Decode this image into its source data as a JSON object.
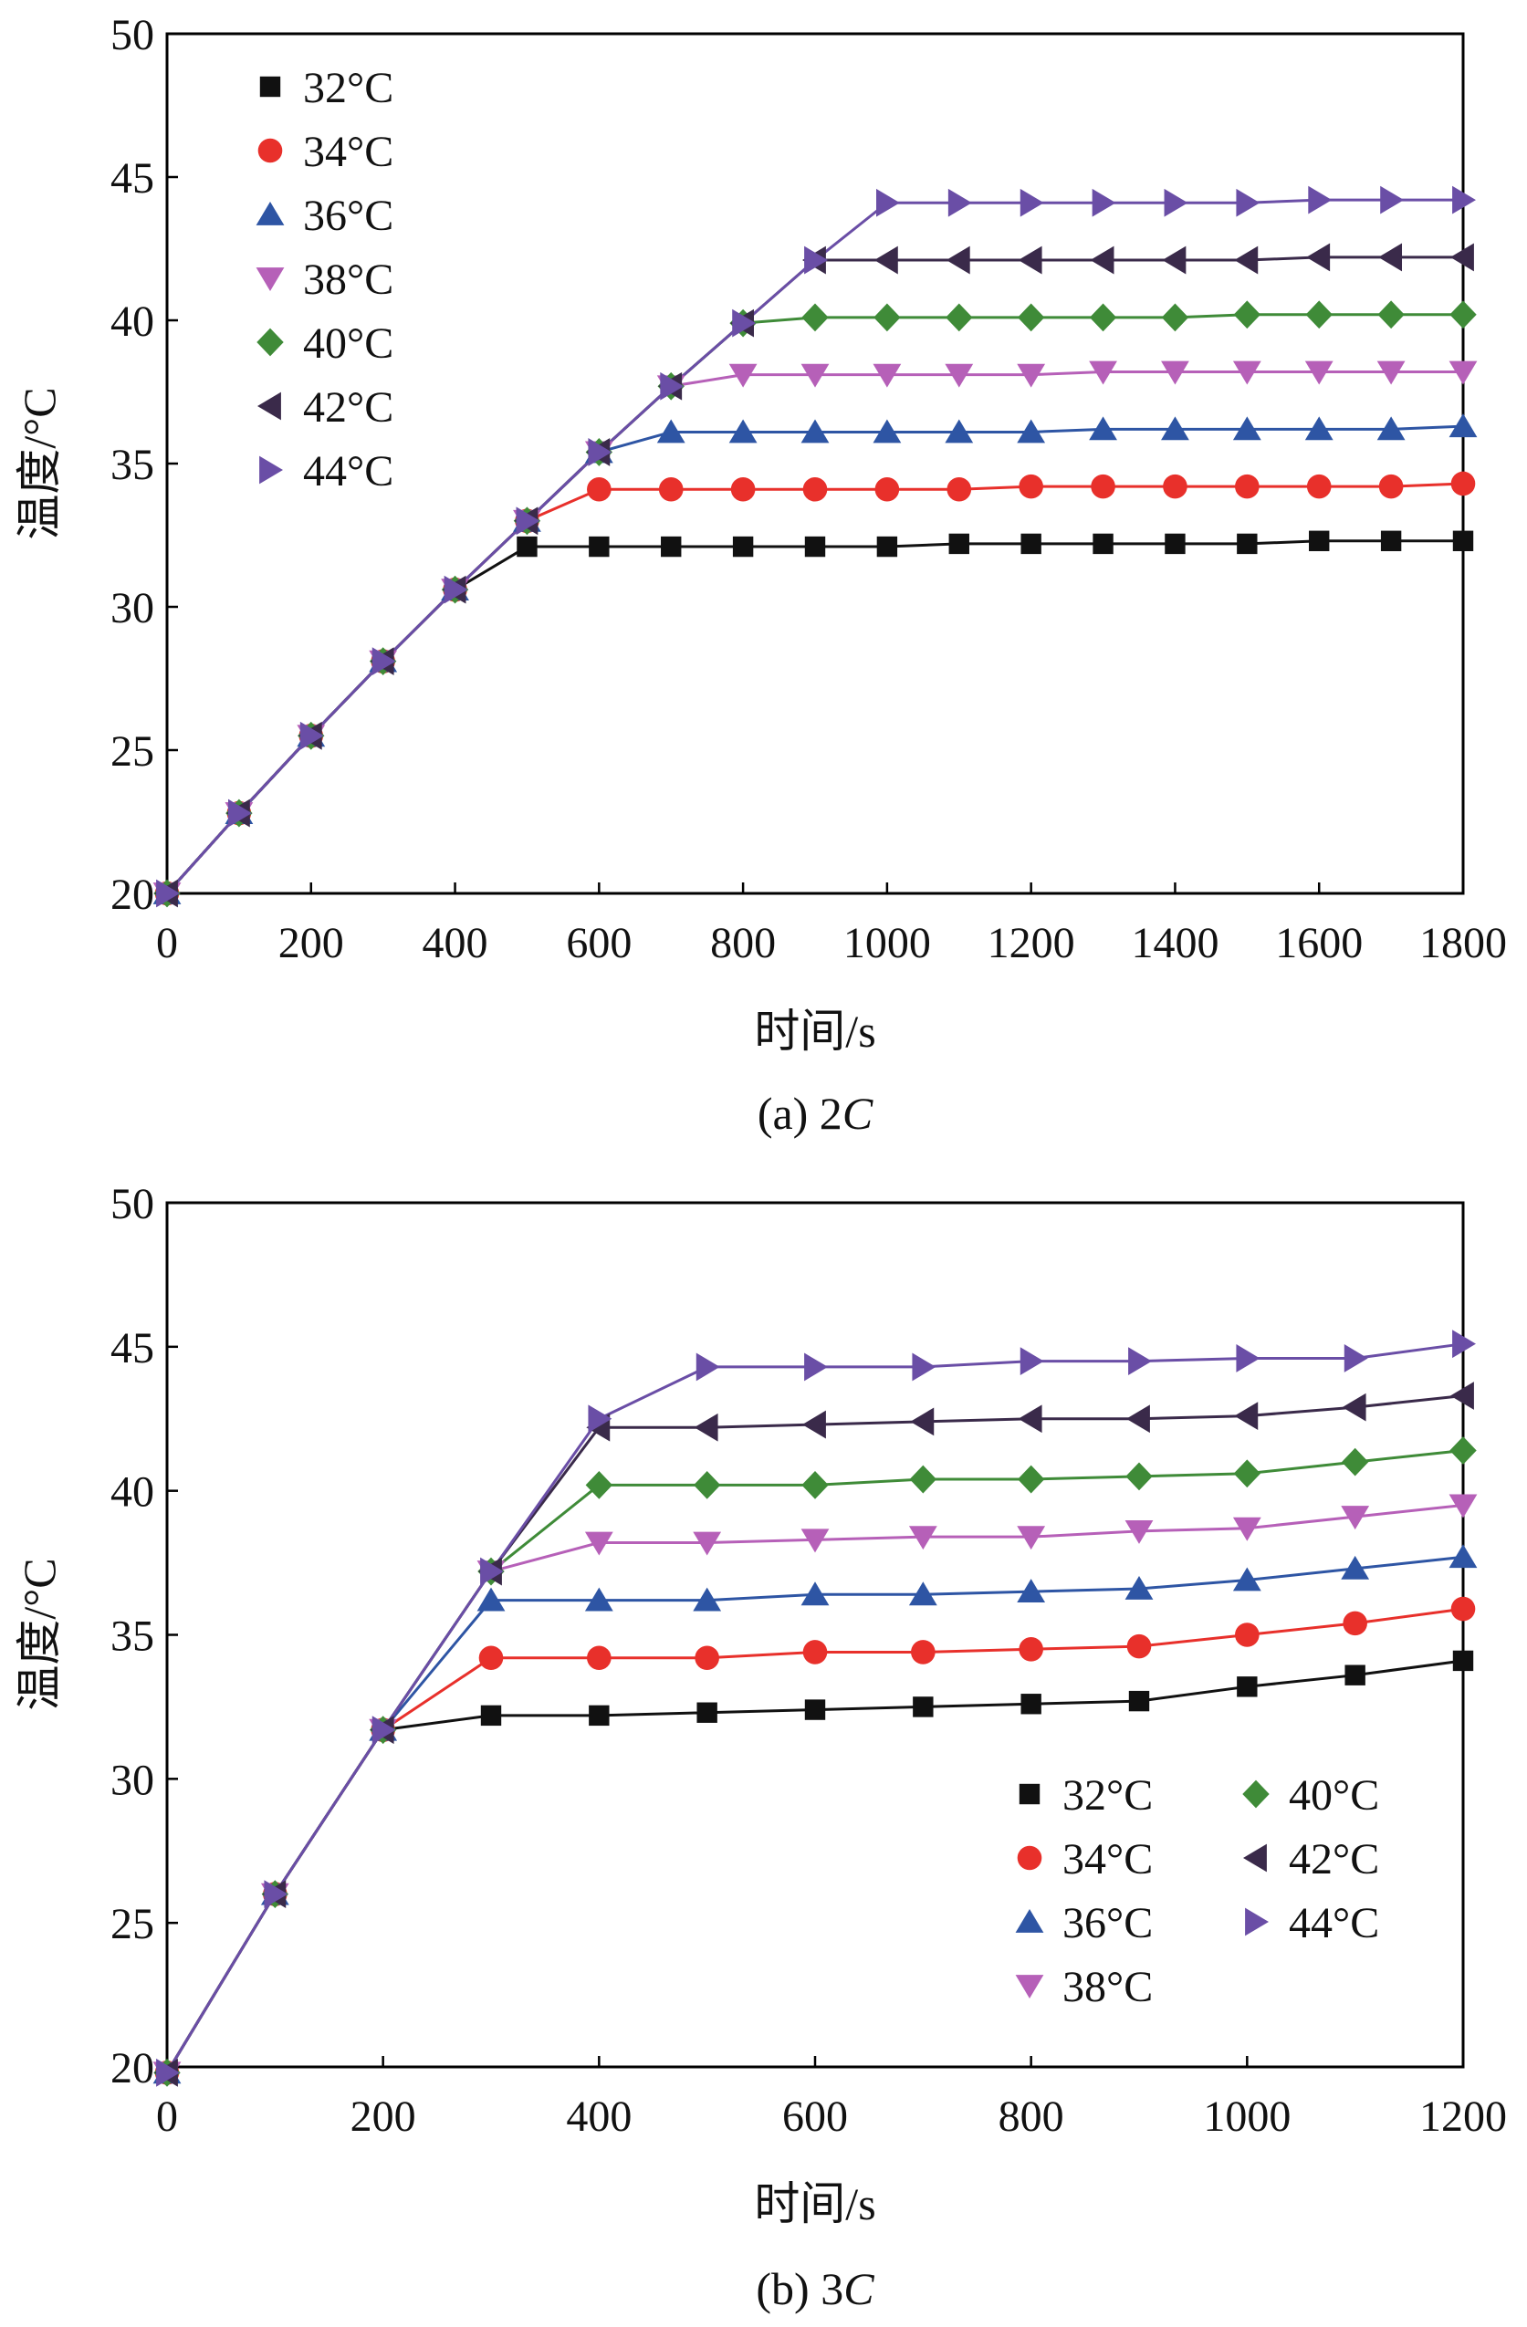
{
  "chart_data": [
    {
      "type": "line",
      "caption": {
        "prefix": "(a) 2",
        "italic": "C"
      },
      "xlabel": "时间/s",
      "ylabel": "温度/°C",
      "xlim": [
        0,
        1800
      ],
      "ylim": [
        20,
        50
      ],
      "xticks": [
        "0",
        "200",
        "400",
        "600",
        "800",
        "1000",
        "1200",
        "1400",
        "1600",
        "1800"
      ],
      "yticks": [
        "20",
        "25",
        "30",
        "35",
        "40",
        "45",
        "50"
      ],
      "grid": false,
      "legend": "top-left",
      "series": [
        {
          "name": "32°C",
          "marker": "square",
          "color": "#111111",
          "line_color": "#111111",
          "x": [
            0,
            100,
            200,
            300,
            400,
            500,
            600,
            700,
            800,
            900,
            1000,
            1100,
            1200,
            1300,
            1400,
            1500,
            1600,
            1700,
            1800
          ],
          "y": [
            20.0,
            22.8,
            25.5,
            28.1,
            30.6,
            32.1,
            32.1,
            32.1,
            32.1,
            32.1,
            32.1,
            32.2,
            32.2,
            32.2,
            32.2,
            32.2,
            32.3,
            32.3,
            32.3
          ]
        },
        {
          "name": "34°C",
          "marker": "circle",
          "color": "#e8302b",
          "line_color": "#e8302b",
          "x": [
            0,
            100,
            200,
            300,
            400,
            500,
            600,
            700,
            800,
            900,
            1000,
            1100,
            1200,
            1300,
            1400,
            1500,
            1600,
            1700,
            1800
          ],
          "y": [
            20.0,
            22.8,
            25.5,
            28.1,
            30.6,
            33.0,
            34.1,
            34.1,
            34.1,
            34.1,
            34.1,
            34.1,
            34.2,
            34.2,
            34.2,
            34.2,
            34.2,
            34.2,
            34.3
          ]
        },
        {
          "name": "36°C",
          "marker": "triangle-up",
          "color": "#2e55a4",
          "line_color": "#2e55a4",
          "x": [
            0,
            100,
            200,
            300,
            400,
            500,
            600,
            700,
            800,
            900,
            1000,
            1100,
            1200,
            1300,
            1400,
            1500,
            1600,
            1700,
            1800
          ],
          "y": [
            20.0,
            22.8,
            25.5,
            28.1,
            30.6,
            33.0,
            35.4,
            36.1,
            36.1,
            36.1,
            36.1,
            36.1,
            36.1,
            36.2,
            36.2,
            36.2,
            36.2,
            36.2,
            36.3
          ]
        },
        {
          "name": "38°C",
          "marker": "triangle-down",
          "color": "#b660b8",
          "line_color": "#b660b8",
          "x": [
            0,
            100,
            200,
            300,
            400,
            500,
            600,
            700,
            800,
            900,
            1000,
            1100,
            1200,
            1300,
            1400,
            1500,
            1600,
            1700,
            1800
          ],
          "y": [
            20.0,
            22.8,
            25.5,
            28.1,
            30.6,
            33.0,
            35.4,
            37.7,
            38.1,
            38.1,
            38.1,
            38.1,
            38.1,
            38.2,
            38.2,
            38.2,
            38.2,
            38.2,
            38.2
          ]
        },
        {
          "name": "40°C",
          "marker": "diamond",
          "color": "#3f8b38",
          "line_color": "#3f8b38",
          "x": [
            0,
            100,
            200,
            300,
            400,
            500,
            600,
            700,
            800,
            900,
            1000,
            1100,
            1200,
            1300,
            1400,
            1500,
            1600,
            1700,
            1800
          ],
          "y": [
            20.0,
            22.8,
            25.5,
            28.1,
            30.6,
            33.0,
            35.4,
            37.7,
            39.9,
            40.1,
            40.1,
            40.1,
            40.1,
            40.1,
            40.1,
            40.2,
            40.2,
            40.2,
            40.2
          ]
        },
        {
          "name": "42°C",
          "marker": "triangle-left",
          "color": "#3a2a4a",
          "line_color": "#3a2a4a",
          "x": [
            0,
            100,
            200,
            300,
            400,
            500,
            600,
            700,
            800,
            900,
            1000,
            1100,
            1200,
            1300,
            1400,
            1500,
            1600,
            1700,
            1800
          ],
          "y": [
            20.0,
            22.8,
            25.5,
            28.1,
            30.6,
            33.0,
            35.4,
            37.7,
            39.9,
            42.1,
            42.1,
            42.1,
            42.1,
            42.1,
            42.1,
            42.1,
            42.2,
            42.2,
            42.2
          ]
        },
        {
          "name": "44°C",
          "marker": "triangle-right",
          "color": "#6a4ea6",
          "line_color": "#6a4ea6",
          "x": [
            0,
            100,
            200,
            300,
            400,
            500,
            600,
            700,
            800,
            900,
            1000,
            1100,
            1200,
            1300,
            1400,
            1500,
            1600,
            1700,
            1800
          ],
          "y": [
            20.0,
            22.8,
            25.5,
            28.1,
            30.6,
            33.0,
            35.4,
            37.7,
            39.9,
            42.1,
            44.1,
            44.1,
            44.1,
            44.1,
            44.1,
            44.1,
            44.2,
            44.2,
            44.2
          ]
        }
      ]
    },
    {
      "type": "line",
      "caption": {
        "prefix": "(b) 3",
        "italic": "C"
      },
      "xlabel": "时间/s",
      "ylabel": "温度/°C",
      "xlim": [
        0,
        1200
      ],
      "ylim": [
        20,
        50
      ],
      "xticks": [
        "0",
        "200",
        "400",
        "600",
        "800",
        "1000",
        "1200"
      ],
      "yticks": [
        "20",
        "25",
        "30",
        "35",
        "40",
        "45",
        "50"
      ],
      "grid": false,
      "legend": "bottom-right",
      "series": [
        {
          "name": "32°C",
          "marker": "square",
          "color": "#111111",
          "line_color": "#111111",
          "x": [
            0,
            100,
            200,
            300,
            400,
            500,
            600,
            700,
            800,
            900,
            1000,
            1100,
            1200
          ],
          "y": [
            19.8,
            26.0,
            31.7,
            32.2,
            32.2,
            32.3,
            32.4,
            32.5,
            32.6,
            32.7,
            33.2,
            33.6,
            34.1
          ]
        },
        {
          "name": "34°C",
          "marker": "circle",
          "color": "#e8302b",
          "line_color": "#e8302b",
          "x": [
            0,
            100,
            200,
            300,
            400,
            500,
            600,
            700,
            800,
            900,
            1000,
            1100,
            1200
          ],
          "y": [
            19.8,
            26.0,
            31.7,
            34.2,
            34.2,
            34.2,
            34.4,
            34.4,
            34.5,
            34.6,
            35.0,
            35.4,
            35.9
          ]
        },
        {
          "name": "36°C",
          "marker": "triangle-up",
          "color": "#2e55a4",
          "line_color": "#2e55a4",
          "x": [
            0,
            100,
            200,
            300,
            400,
            500,
            600,
            700,
            800,
            900,
            1000,
            1100,
            1200
          ],
          "y": [
            19.8,
            26.0,
            31.7,
            36.2,
            36.2,
            36.2,
            36.4,
            36.4,
            36.5,
            36.6,
            36.9,
            37.3,
            37.7
          ]
        },
        {
          "name": "38°C",
          "marker": "triangle-down",
          "color": "#b660b8",
          "line_color": "#b660b8",
          "x": [
            0,
            100,
            200,
            300,
            400,
            500,
            600,
            700,
            800,
            900,
            1000,
            1100,
            1200
          ],
          "y": [
            19.8,
            26.0,
            31.7,
            37.2,
            38.2,
            38.2,
            38.3,
            38.4,
            38.4,
            38.6,
            38.7,
            39.1,
            39.5
          ]
        },
        {
          "name": "40°C",
          "marker": "diamond",
          "color": "#3f8b38",
          "line_color": "#3f8b38",
          "x": [
            0,
            100,
            200,
            300,
            400,
            500,
            600,
            700,
            800,
            900,
            1000,
            1100,
            1200
          ],
          "y": [
            19.8,
            26.0,
            31.7,
            37.2,
            40.2,
            40.2,
            40.2,
            40.4,
            40.4,
            40.5,
            40.6,
            41.0,
            41.4
          ]
        },
        {
          "name": "42°C",
          "marker": "triangle-left",
          "color": "#3a2a4a",
          "line_color": "#3a2a4a",
          "x": [
            0,
            100,
            200,
            300,
            400,
            500,
            600,
            700,
            800,
            900,
            1000,
            1100,
            1200
          ],
          "y": [
            19.8,
            26.0,
            31.7,
            37.2,
            42.2,
            42.2,
            42.3,
            42.4,
            42.5,
            42.5,
            42.6,
            42.9,
            43.3
          ]
        },
        {
          "name": "44°C",
          "marker": "triangle-right",
          "color": "#6a4ea6",
          "line_color": "#6a4ea6",
          "x": [
            0,
            100,
            200,
            300,
            400,
            500,
            600,
            700,
            800,
            900,
            1000,
            1100,
            1200
          ],
          "y": [
            19.8,
            26.0,
            31.7,
            37.2,
            42.5,
            44.3,
            44.3,
            44.3,
            44.5,
            44.5,
            44.6,
            44.6,
            45.1
          ]
        }
      ]
    }
  ]
}
